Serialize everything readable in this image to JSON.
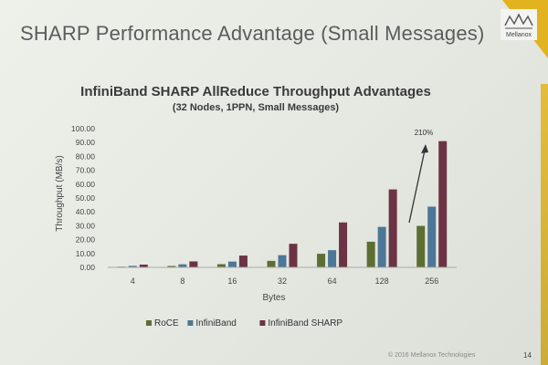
{
  "slide": {
    "title": "SHARP Performance Advantage (Small Messages)",
    "brand": "Mellanox",
    "copyright": "© 2016 Mellanox Technologies",
    "page_number": "14"
  },
  "chart_data": {
    "type": "bar",
    "title": "InfiniBand SHARP AllReduce Throughput Advantages",
    "subtitle": "(32 Nodes, 1PPN, Small Messages)",
    "xlabel": "Bytes",
    "ylabel": "Throughput (MB/s)",
    "ylim": [
      0,
      100
    ],
    "yticks": [
      "0.00",
      "10.00",
      "20.00",
      "30.00",
      "40.00",
      "50.00",
      "60.00",
      "70.00",
      "80.00",
      "90.00",
      "100.00"
    ],
    "categories": [
      "4",
      "8",
      "16",
      "32",
      "64",
      "128",
      "256"
    ],
    "series": [
      {
        "name": "RoCE",
        "color": "#5d6e33",
        "values": [
          0.5,
          1.0,
          2.3,
          4.7,
          9.8,
          18.5,
          29.9
        ]
      },
      {
        "name": "InfiniBand",
        "color": "#4d7796",
        "values": [
          1.1,
          2.2,
          4.2,
          8.8,
          12.4,
          29.2,
          43.8
        ]
      },
      {
        "name": "InfiniBand SHARP",
        "color": "#6b3344",
        "values": [
          2.0,
          4.3,
          8.5,
          17.0,
          32.4,
          56.2,
          91.0
        ]
      }
    ],
    "grid": false,
    "legend": "bottom",
    "annotation": "210%"
  }
}
